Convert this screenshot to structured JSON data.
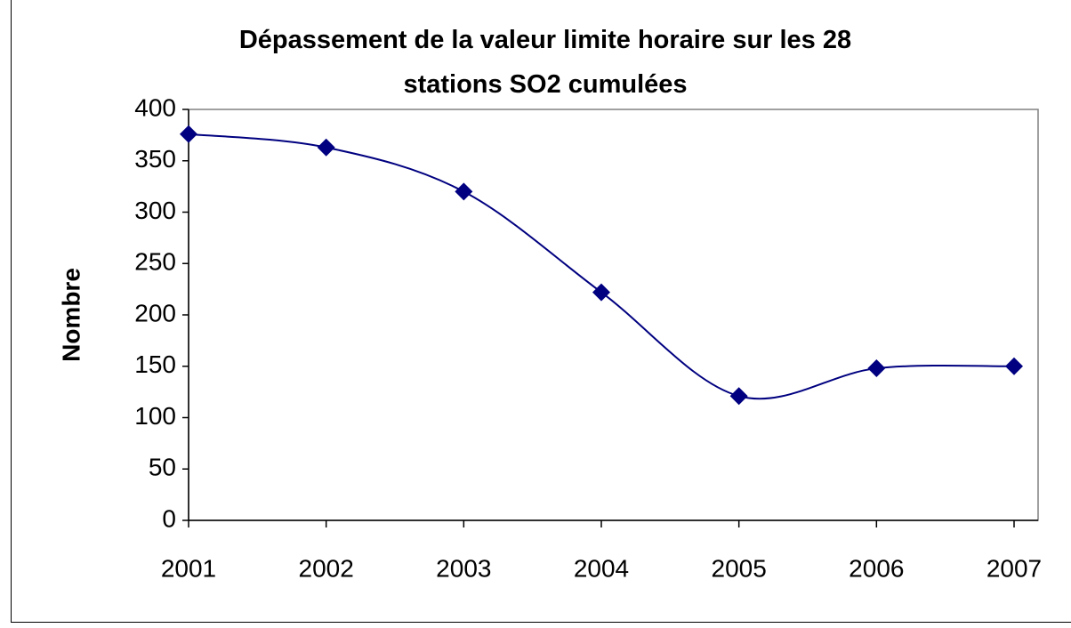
{
  "chart_data": {
    "type": "line",
    "title": "Dépassement de la valeur limite horaire sur les 28 stations SO2 cumulées",
    "ylabel": "Nombre",
    "categories": [
      "2001",
      "2002",
      "2003",
      "2004",
      "2005",
      "2006",
      "2007"
    ],
    "series": [
      {
        "name": "Nombre",
        "color": "#000080",
        "values": [
          376,
          363,
          320,
          222,
          121,
          148,
          150
        ]
      }
    ],
    "ylim": [
      0,
      400
    ],
    "yticks": [
      0,
      50,
      100,
      150,
      200,
      250,
      300,
      350,
      400
    ],
    "smooth": true,
    "grid": false,
    "legend": false
  }
}
